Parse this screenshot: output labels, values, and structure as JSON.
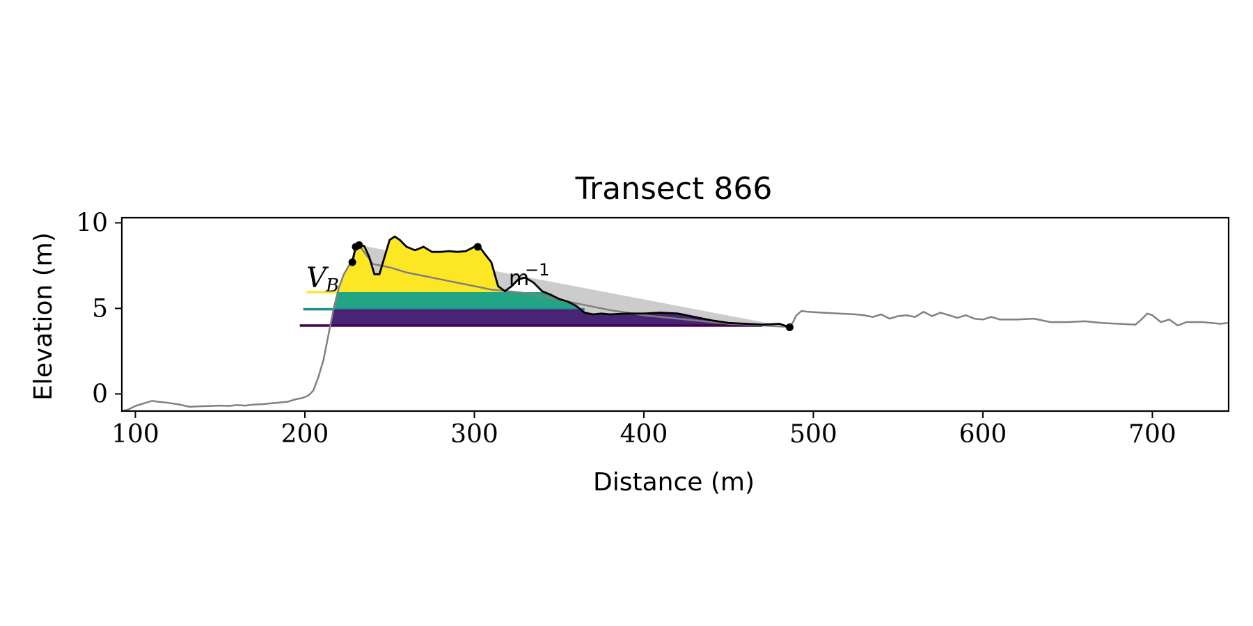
{
  "chart_data": {
    "type": "line",
    "title": "Transect 866",
    "xlabel": "Distance (m)",
    "ylabel": "Elevation (m)",
    "xlim": [
      92,
      745
    ],
    "ylim": [
      -1.0,
      10.3
    ],
    "xticks": [
      100,
      200,
      300,
      400,
      500,
      600,
      700
    ],
    "yticks": [
      0,
      5,
      10
    ],
    "grid": false,
    "legend": "none",
    "annotations": {
      "vb_main": "V",
      "vb_sub": "B",
      "unit_main": "m",
      "unit_sup": "−1"
    },
    "colors": {
      "profile": "#808080",
      "dune_line": "#000000",
      "envelope_fill": "#cccccc",
      "band_high": "#fde725",
      "band_mid": "#21a585",
      "band_low": "#482475",
      "marker_high": "#fde725",
      "marker_mid": "#21918c",
      "marker_low": "#440154"
    },
    "profile": {
      "x": [
        92,
        96,
        100,
        105,
        110,
        113,
        118,
        125,
        132,
        138,
        145,
        150,
        155,
        160,
        165,
        170,
        175,
        180,
        185,
        190,
        195,
        198,
        202,
        205,
        208,
        211,
        214,
        217,
        220,
        223,
        226,
        228,
        229,
        230,
        232,
        240,
        250,
        260,
        270,
        280,
        290,
        300,
        310,
        320,
        330,
        340,
        350,
        360,
        370,
        380,
        390,
        400,
        410,
        420,
        430,
        440,
        450,
        460,
        470,
        480,
        486,
        488,
        490,
        493,
        497,
        505,
        515,
        525,
        530,
        535,
        540,
        545,
        550,
        555,
        560,
        565,
        570,
        575,
        580,
        585,
        590,
        595,
        600,
        605,
        610,
        620,
        630,
        640,
        650,
        660,
        670,
        680,
        690,
        693,
        697,
        700,
        705,
        710,
        715,
        720,
        730,
        740,
        745
      ],
      "y": [
        -1.0,
        -0.9,
        -0.7,
        -0.55,
        -0.4,
        -0.45,
        -0.5,
        -0.6,
        -0.75,
        -0.72,
        -0.7,
        -0.68,
        -0.7,
        -0.65,
        -0.68,
        -0.62,
        -0.6,
        -0.55,
        -0.5,
        -0.45,
        -0.3,
        -0.25,
        -0.1,
        0.2,
        1.0,
        2.0,
        3.5,
        5.0,
        6.2,
        7.0,
        7.5,
        7.7,
        8.0,
        8.6,
        8.7,
        7.6,
        7.4,
        7.1,
        6.9,
        6.7,
        6.5,
        6.3,
        6.1,
        6.0,
        5.9,
        5.7,
        5.5,
        5.3,
        5.1,
        4.9,
        4.75,
        4.6,
        4.5,
        4.4,
        4.3,
        4.2,
        4.1,
        4.05,
        4.0,
        3.95,
        3.9,
        4.2,
        4.6,
        4.85,
        4.8,
        4.75,
        4.7,
        4.65,
        4.6,
        4.5,
        4.65,
        4.4,
        4.55,
        4.6,
        4.5,
        4.8,
        4.55,
        4.75,
        4.6,
        4.45,
        4.6,
        4.4,
        4.35,
        4.5,
        4.35,
        4.35,
        4.4,
        4.2,
        4.2,
        4.25,
        4.15,
        4.1,
        4.05,
        4.3,
        4.7,
        4.6,
        4.2,
        4.35,
        4.0,
        4.2,
        4.2,
        4.1,
        4.15
      ]
    },
    "dune": {
      "x": [
        228,
        229,
        230,
        232,
        235,
        238,
        241,
        244,
        247,
        250,
        253,
        256,
        260,
        265,
        270,
        275,
        280,
        285,
        290,
        295,
        300,
        303,
        306,
        310,
        314,
        318,
        322,
        326,
        330,
        335,
        340,
        345,
        350,
        355,
        360,
        365,
        370,
        375,
        380,
        390,
        400,
        410,
        420,
        430,
        440,
        450,
        460,
        470,
        480,
        486
      ],
      "y": [
        7.7,
        8.2,
        8.5,
        8.7,
        8.65,
        8.0,
        7.0,
        7.0,
        8.0,
        9.0,
        9.2,
        9.0,
        8.6,
        8.4,
        8.6,
        8.3,
        8.3,
        8.35,
        8.3,
        8.35,
        8.6,
        8.6,
        8.2,
        7.7,
        6.3,
        6.0,
        6.3,
        6.7,
        6.8,
        6.5,
        6.0,
        5.8,
        5.55,
        5.4,
        5.15,
        4.75,
        4.65,
        4.7,
        4.65,
        4.7,
        4.7,
        4.75,
        4.7,
        4.5,
        4.3,
        4.15,
        4.1,
        4.05,
        4.1,
        3.9
      ]
    },
    "markers": {
      "x": [
        228,
        230,
        232,
        302,
        486
      ],
      "y": [
        7.7,
        8.6,
        8.7,
        8.6,
        3.9
      ]
    },
    "bands": [
      {
        "level": "high",
        "base": 5.95,
        "line_start": 201,
        "fill_end": 319
      },
      {
        "level": "mid",
        "base": 4.95,
        "line_start": 199,
        "fill_end": 365
      },
      {
        "level": "low",
        "base": 4.0,
        "line_start": 197,
        "fill_end": 470
      }
    ]
  }
}
